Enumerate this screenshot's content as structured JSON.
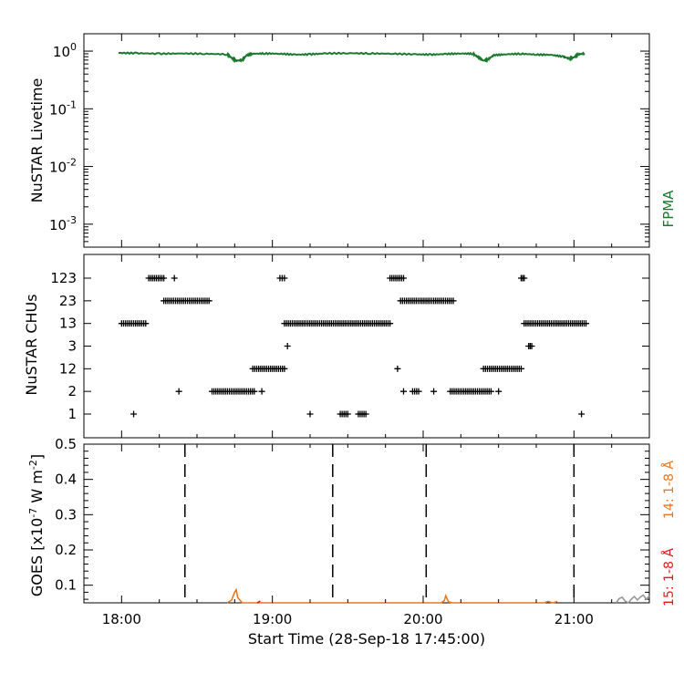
{
  "x_axis": {
    "label": "Start Time (28-Sep-18 17:45:00)",
    "range_hours": [
      17.75,
      21.5
    ],
    "ticks": [
      {
        "value": 18.0,
        "label": "18:00"
      },
      {
        "value": 19.0,
        "label": "19:00"
      },
      {
        "value": 20.0,
        "label": "20:00"
      },
      {
        "value": 21.0,
        "label": "21:00"
      }
    ]
  },
  "colors": {
    "fpma": "#1a7a2e",
    "goes14": "#e87722",
    "goes15": "#e8161c",
    "goes_other": "#999999",
    "points": "#000000"
  },
  "chart_data": [
    {
      "type": "line",
      "ylabel": "NuSTAR Livetime",
      "yscale": "log",
      "ylim": [
        0.0004,
        2.0
      ],
      "yticks": [
        {
          "base": "10",
          "exp": "0",
          "value": 1
        },
        {
          "base": "10",
          "exp": "-1",
          "value": 0.1
        },
        {
          "base": "10",
          "exp": "-2",
          "value": 0.01
        },
        {
          "base": "10",
          "exp": "-3",
          "value": 0.001
        }
      ],
      "series": [
        {
          "name": "FPMA",
          "color": "#1a7a2e",
          "x": [
            17.98,
            18.1,
            18.25,
            18.4,
            18.55,
            18.7,
            18.73,
            18.76,
            18.8,
            18.83,
            18.87,
            18.95,
            19.05,
            19.15,
            19.25,
            19.35,
            19.5,
            19.65,
            19.8,
            19.95,
            20.05,
            20.15,
            20.25,
            20.33,
            20.36,
            20.4,
            20.43,
            20.47,
            20.55,
            20.65,
            20.75,
            20.85,
            20.93,
            20.97,
            21.0,
            21.03,
            21.07
          ],
          "y": [
            0.93,
            0.92,
            0.9,
            0.91,
            0.9,
            0.88,
            0.76,
            0.68,
            0.7,
            0.85,
            0.9,
            0.91,
            0.9,
            0.87,
            0.88,
            0.91,
            0.92,
            0.91,
            0.9,
            0.88,
            0.87,
            0.89,
            0.91,
            0.9,
            0.8,
            0.68,
            0.72,
            0.85,
            0.88,
            0.9,
            0.87,
            0.86,
            0.8,
            0.74,
            0.78,
            0.88,
            0.91
          ]
        }
      ]
    },
    {
      "type": "scatter",
      "ylabel": "NuSTAR CHUs",
      "categories": [
        "1",
        "2",
        "12",
        "3",
        "13",
        "23",
        "123"
      ],
      "marker": "+",
      "runs": [
        {
          "level": "13",
          "x0": 18.0,
          "x1": 18.16
        },
        {
          "level": "1",
          "x0": 18.08,
          "x1": 18.08
        },
        {
          "level": "123",
          "x0": 18.18,
          "x1": 18.28
        },
        {
          "level": "123",
          "x0": 18.35,
          "x1": 18.35
        },
        {
          "level": "23",
          "x0": 18.28,
          "x1": 18.58
        },
        {
          "level": "2",
          "x0": 18.38,
          "x1": 18.38
        },
        {
          "level": "2",
          "x0": 18.6,
          "x1": 18.88
        },
        {
          "level": "2",
          "x0": 18.93,
          "x1": 18.93
        },
        {
          "level": "12",
          "x0": 18.87,
          "x1": 19.08
        },
        {
          "level": "123",
          "x0": 19.05,
          "x1": 19.08
        },
        {
          "level": "3",
          "x0": 19.1,
          "x1": 19.1
        },
        {
          "level": "13",
          "x0": 19.08,
          "x1": 19.78
        },
        {
          "level": "1",
          "x0": 19.25,
          "x1": 19.25
        },
        {
          "level": "1",
          "x0": 19.45,
          "x1": 19.5
        },
        {
          "level": "1",
          "x0": 19.57,
          "x1": 19.62
        },
        {
          "level": "123",
          "x0": 19.78,
          "x1": 19.87
        },
        {
          "level": "12",
          "x0": 19.83,
          "x1": 19.83
        },
        {
          "level": "23",
          "x0": 19.85,
          "x1": 20.2
        },
        {
          "level": "2",
          "x0": 19.87,
          "x1": 19.87
        },
        {
          "level": "2",
          "x0": 19.93,
          "x1": 19.97
        },
        {
          "level": "2",
          "x0": 20.07,
          "x1": 20.07
        },
        {
          "level": "2",
          "x0": 20.18,
          "x1": 20.45
        },
        {
          "level": "2",
          "x0": 20.5,
          "x1": 20.5
        },
        {
          "level": "12",
          "x0": 20.4,
          "x1": 20.65
        },
        {
          "level": "123",
          "x0": 20.65,
          "x1": 20.67
        },
        {
          "level": "3",
          "x0": 20.7,
          "x1": 20.72
        },
        {
          "level": "13",
          "x0": 20.67,
          "x1": 21.08
        },
        {
          "level": "1",
          "x0": 21.05,
          "x1": 21.05
        }
      ]
    },
    {
      "type": "line",
      "ylabel_main": "GOES [x10",
      "ylabel_exp1": "-7",
      "ylabel_mid": " W m",
      "ylabel_exp2": "-2",
      "ylabel_end": "]",
      "ylim": [
        0.05,
        0.5
      ],
      "yticks": [
        0.1,
        0.2,
        0.3,
        0.4,
        0.5
      ],
      "dashed_lines_x": [
        18.42,
        19.4,
        20.02,
        21.0
      ],
      "series": [
        {
          "name": "14: 1-8 Å",
          "color": "#e87722",
          "x": [
            18.7,
            18.73,
            18.75,
            18.76,
            18.77,
            18.8,
            20.12,
            20.14,
            20.15,
            20.16,
            20.17,
            20.2,
            20.8,
            20.83,
            20.86,
            20.89
          ],
          "y": [
            0.05,
            0.058,
            0.08,
            0.087,
            0.065,
            0.05,
            0.05,
            0.056,
            0.07,
            0.06,
            0.052,
            0.05,
            0.05,
            0.054,
            0.05,
            0.054
          ]
        },
        {
          "name": "15: 1-8 Å",
          "color": "#e8161c",
          "x": [
            18.9,
            18.92
          ],
          "y": [
            0.05,
            0.055
          ]
        },
        {
          "name": "",
          "color": "#999999",
          "x": [
            21.28,
            21.3,
            21.32,
            21.34,
            21.36,
            21.38,
            21.4,
            21.42,
            21.44,
            21.46,
            21.48,
            21.5
          ],
          "y": [
            0.05,
            0.062,
            0.066,
            0.055,
            0.05,
            0.06,
            0.068,
            0.058,
            0.066,
            0.072,
            0.06,
            0.07
          ]
        }
      ]
    }
  ]
}
